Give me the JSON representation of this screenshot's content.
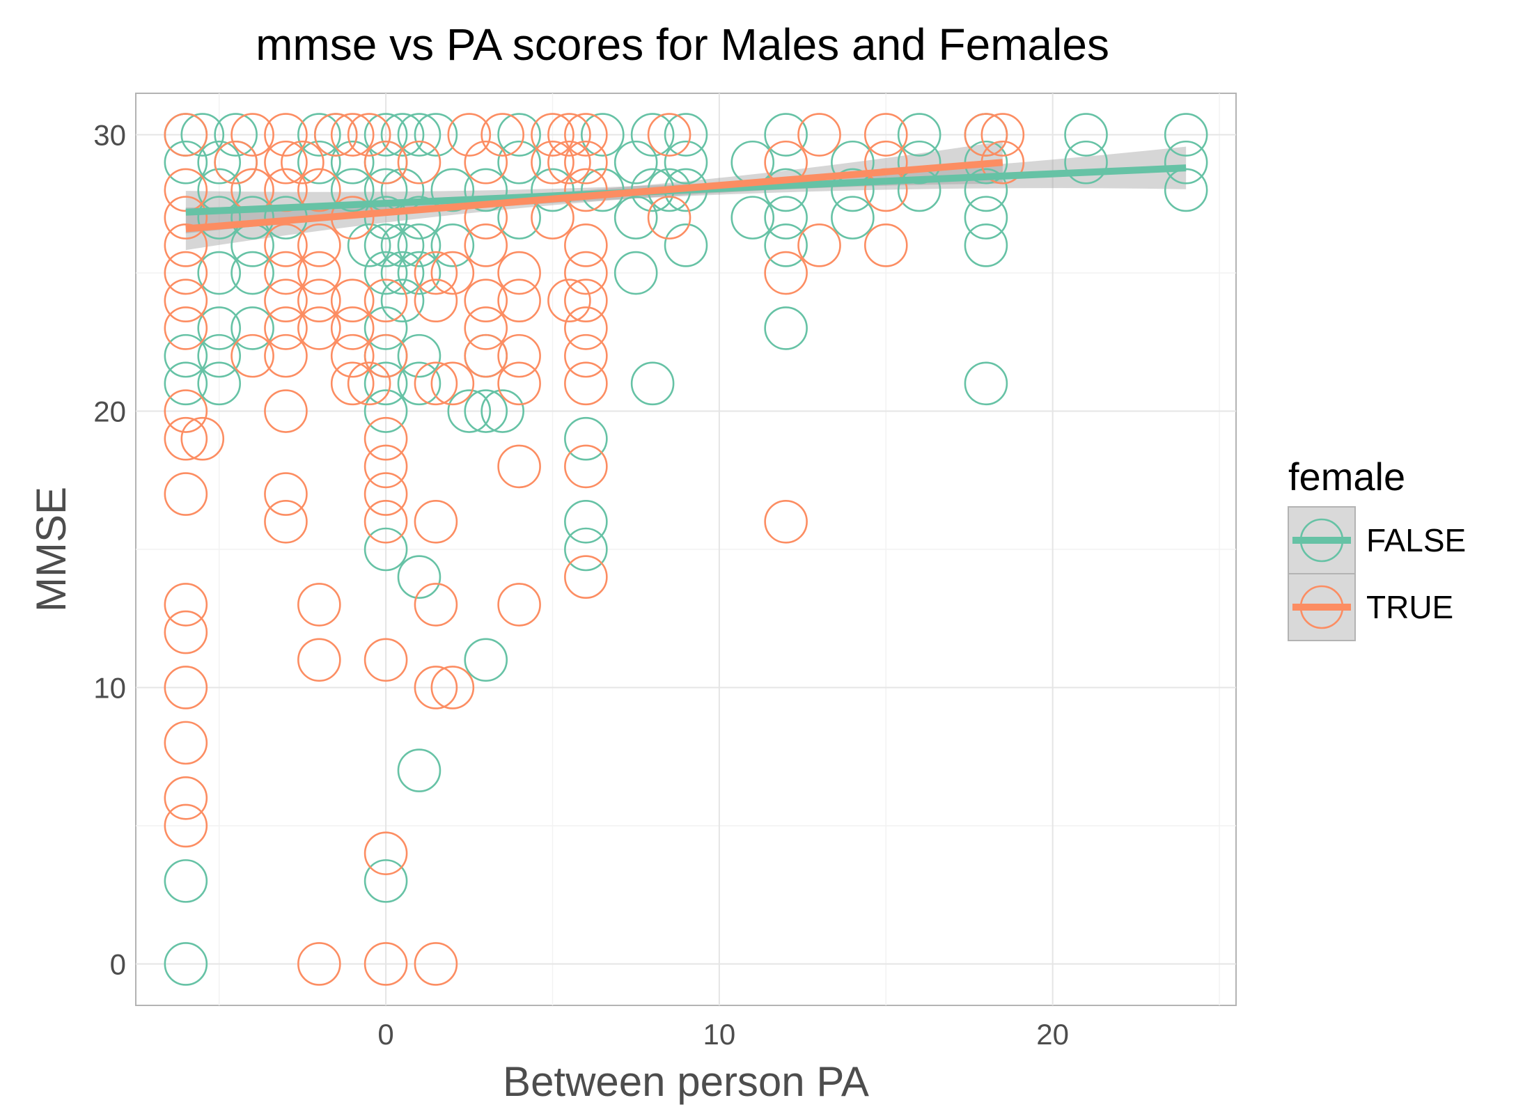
{
  "chart_data": {
    "type": "scatter",
    "title": "mmse vs PA scores for Males and Females",
    "xlabel": "Between person PA",
    "ylabel": "MMSE",
    "xlim": [
      -7.5,
      25.5
    ],
    "ylim": [
      -1.5,
      31.5
    ],
    "x_ticks": [
      0,
      10,
      20
    ],
    "y_ticks": [
      0,
      10,
      20,
      30
    ],
    "grid": true,
    "legend": {
      "title": "female",
      "position": "right"
    },
    "series": [
      {
        "name": "FALSE",
        "color": "#66c2a5",
        "points": [
          [
            -6,
            30
          ],
          [
            -6,
            29
          ],
          [
            -6,
            22
          ],
          [
            -6,
            21
          ],
          [
            -6,
            3
          ],
          [
            -6,
            0
          ],
          [
            -5.5,
            30
          ],
          [
            -5,
            29
          ],
          [
            -5,
            28
          ],
          [
            -5,
            27
          ],
          [
            -5,
            25
          ],
          [
            -5,
            23
          ],
          [
            -5,
            22
          ],
          [
            -5,
            21
          ],
          [
            -4.5,
            30
          ],
          [
            -4.5,
            29
          ],
          [
            -4,
            27
          ],
          [
            -4,
            26
          ],
          [
            -4,
            25
          ],
          [
            -4,
            23
          ],
          [
            -3,
            27
          ],
          [
            -2,
            30
          ],
          [
            -2,
            29
          ],
          [
            -1.5,
            30
          ],
          [
            -1,
            29
          ],
          [
            -1,
            28
          ],
          [
            -0.5,
            26
          ],
          [
            0,
            30
          ],
          [
            0,
            29
          ],
          [
            0,
            28
          ],
          [
            0,
            27
          ],
          [
            0,
            26
          ],
          [
            0,
            25
          ],
          [
            0,
            23
          ],
          [
            0,
            22
          ],
          [
            0,
            21
          ],
          [
            0,
            20
          ],
          [
            0,
            15
          ],
          [
            0,
            3
          ],
          [
            0.5,
            30
          ],
          [
            0.5,
            28
          ],
          [
            0.5,
            26
          ],
          [
            0.5,
            25
          ],
          [
            0.5,
            24
          ],
          [
            1,
            30
          ],
          [
            1,
            27
          ],
          [
            1,
            26
          ],
          [
            1,
            25
          ],
          [
            1,
            22
          ],
          [
            1,
            21
          ],
          [
            1,
            14
          ],
          [
            1,
            7
          ],
          [
            1.5,
            30
          ],
          [
            2,
            28
          ],
          [
            2,
            26
          ],
          [
            2.5,
            20
          ],
          [
            3,
            28
          ],
          [
            3,
            22
          ],
          [
            3,
            20
          ],
          [
            3,
            11
          ],
          [
            3.5,
            20
          ],
          [
            4,
            30
          ],
          [
            4,
            29
          ],
          [
            4,
            27
          ],
          [
            5,
            28
          ],
          [
            6,
            19
          ],
          [
            6,
            16
          ],
          [
            6,
            15
          ],
          [
            6.5,
            30
          ],
          [
            6.5,
            28
          ],
          [
            7.5,
            29
          ],
          [
            7.5,
            27
          ],
          [
            7.5,
            25
          ],
          [
            8,
            30
          ],
          [
            8,
            28
          ],
          [
            8,
            21
          ],
          [
            8.5,
            28
          ],
          [
            9,
            30
          ],
          [
            9,
            29
          ],
          [
            9,
            28
          ],
          [
            9,
            26
          ],
          [
            11,
            29
          ],
          [
            11,
            27
          ],
          [
            12,
            30
          ],
          [
            12,
            28
          ],
          [
            12,
            27
          ],
          [
            12,
            26
          ],
          [
            12,
            23
          ],
          [
            14,
            29
          ],
          [
            14,
            28
          ],
          [
            14,
            27
          ],
          [
            16,
            30
          ],
          [
            16,
            29
          ],
          [
            16,
            28
          ],
          [
            18,
            30
          ],
          [
            18,
            29
          ],
          [
            18,
            28
          ],
          [
            18,
            27
          ],
          [
            18,
            26
          ],
          [
            18,
            21
          ],
          [
            21,
            30
          ],
          [
            21,
            29
          ],
          [
            24,
            30
          ],
          [
            24,
            29
          ],
          [
            24,
            28
          ]
        ],
        "trend": {
          "x": [
            -6,
            24
          ],
          "y": [
            27.2,
            28.8
          ]
        }
      },
      {
        "name": "TRUE",
        "color": "#fc8d62",
        "points": [
          [
            -6,
            30
          ],
          [
            -6,
            28
          ],
          [
            -6,
            27
          ],
          [
            -6,
            26
          ],
          [
            -6,
            25
          ],
          [
            -6,
            24
          ],
          [
            -6,
            23
          ],
          [
            -6,
            20
          ],
          [
            -6,
            19
          ],
          [
            -6,
            17
          ],
          [
            -6,
            13
          ],
          [
            -6,
            12
          ],
          [
            -6,
            10
          ],
          [
            -6,
            8
          ],
          [
            -6,
            6
          ],
          [
            -6,
            5
          ],
          [
            -5.5,
            19
          ],
          [
            -4.5,
            29
          ],
          [
            -4,
            30
          ],
          [
            -4,
            28
          ],
          [
            -4,
            22
          ],
          [
            -3,
            30
          ],
          [
            -3,
            29
          ],
          [
            -3,
            28
          ],
          [
            -3,
            26
          ],
          [
            -3,
            25
          ],
          [
            -3,
            24
          ],
          [
            -3,
            23
          ],
          [
            -3,
            22
          ],
          [
            -3,
            20
          ],
          [
            -3,
            17
          ],
          [
            -3,
            16
          ],
          [
            -2.5,
            29
          ],
          [
            -2,
            28
          ],
          [
            -2,
            26
          ],
          [
            -2,
            25
          ],
          [
            -2,
            24
          ],
          [
            -2,
            23
          ],
          [
            -2,
            13
          ],
          [
            -2,
            11
          ],
          [
            -2,
            0
          ],
          [
            -1.5,
            30
          ],
          [
            -1,
            30
          ],
          [
            -1,
            27
          ],
          [
            -1,
            24
          ],
          [
            -1,
            23
          ],
          [
            -1,
            22
          ],
          [
            -1,
            21
          ],
          [
            -0.5,
            30
          ],
          [
            -0.5,
            21
          ],
          [
            0,
            29
          ],
          [
            0,
            24
          ],
          [
            0,
            22
          ],
          [
            0,
            19
          ],
          [
            0,
            18
          ],
          [
            0,
            17
          ],
          [
            0,
            16
          ],
          [
            0,
            11
          ],
          [
            0,
            4
          ],
          [
            0,
            0
          ],
          [
            1,
            29
          ],
          [
            1.5,
            25
          ],
          [
            1.5,
            24
          ],
          [
            1.5,
            21
          ],
          [
            1.5,
            16
          ],
          [
            1.5,
            13
          ],
          [
            1.5,
            10
          ],
          [
            1.5,
            0
          ],
          [
            2,
            25
          ],
          [
            2,
            21
          ],
          [
            2,
            10
          ],
          [
            2.5,
            30
          ],
          [
            3,
            29
          ],
          [
            3,
            27
          ],
          [
            3,
            26
          ],
          [
            3,
            24
          ],
          [
            3,
            23
          ],
          [
            3,
            22
          ],
          [
            3.5,
            30
          ],
          [
            4,
            25
          ],
          [
            4,
            24
          ],
          [
            4,
            22
          ],
          [
            4,
            21
          ],
          [
            4,
            18
          ],
          [
            4,
            13
          ],
          [
            5,
            30
          ],
          [
            5,
            29
          ],
          [
            5,
            27
          ],
          [
            5.5,
            30
          ],
          [
            5.5,
            29
          ],
          [
            5.5,
            24
          ],
          [
            6,
            30
          ],
          [
            6,
            29
          ],
          [
            6,
            28
          ],
          [
            6,
            26
          ],
          [
            6,
            25
          ],
          [
            6,
            24
          ],
          [
            6,
            23
          ],
          [
            6,
            22
          ],
          [
            6,
            21
          ],
          [
            6,
            18
          ],
          [
            6,
            14
          ],
          [
            8.5,
            30
          ],
          [
            8.5,
            27
          ],
          [
            12,
            29
          ],
          [
            12,
            25
          ],
          [
            12,
            16
          ],
          [
            13,
            30
          ],
          [
            13,
            26
          ],
          [
            15,
            30
          ],
          [
            15,
            29
          ],
          [
            15,
            28
          ],
          [
            15,
            26
          ],
          [
            18,
            30
          ],
          [
            18.5,
            30
          ],
          [
            18.5,
            29
          ]
        ],
        "trend": {
          "x": [
            -6,
            18.5
          ],
          "y": [
            26.6,
            29.0
          ]
        }
      }
    ]
  }
}
